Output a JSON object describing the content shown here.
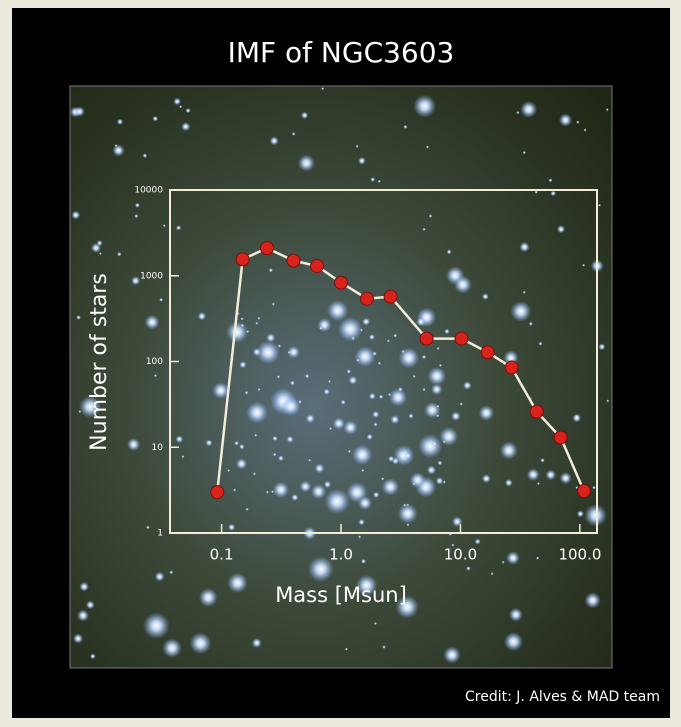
{
  "chart_data": {
    "type": "line",
    "title": "IMF of NGC3603",
    "x_label": "Mass [Msun]",
    "y_label": "Number of stars",
    "credit": "Credit: J. Alves & MAD team",
    "log_x": true,
    "log_y": true,
    "xlim": [
      0.037,
      139
    ],
    "ylim": [
      1,
      10000
    ],
    "xticks": [
      0.1,
      {
        "value": 1,
        "label": "1.0"
      },
      {
        "value": 10,
        "label": "10.0"
      },
      {
        "value": 100,
        "label": "100.0"
      }
    ],
    "yticks": [
      1,
      10,
      100,
      1000,
      10000
    ],
    "series": [
      {
        "name": "NGC3603",
        "color": "#f2ecd8",
        "marker_color": "#d8231c",
        "x": [
          0.092,
          0.15,
          0.24,
          0.4,
          0.63,
          1.0,
          1.65,
          2.6,
          5.2,
          10.2,
          16.9,
          26.8,
          43.5,
          69,
          108
        ],
        "values": [
          3,
          1550,
          2100,
          1500,
          1300,
          830,
          540,
          570,
          185,
          185,
          128,
          85,
          26,
          13,
          3.1
        ]
      }
    ]
  }
}
